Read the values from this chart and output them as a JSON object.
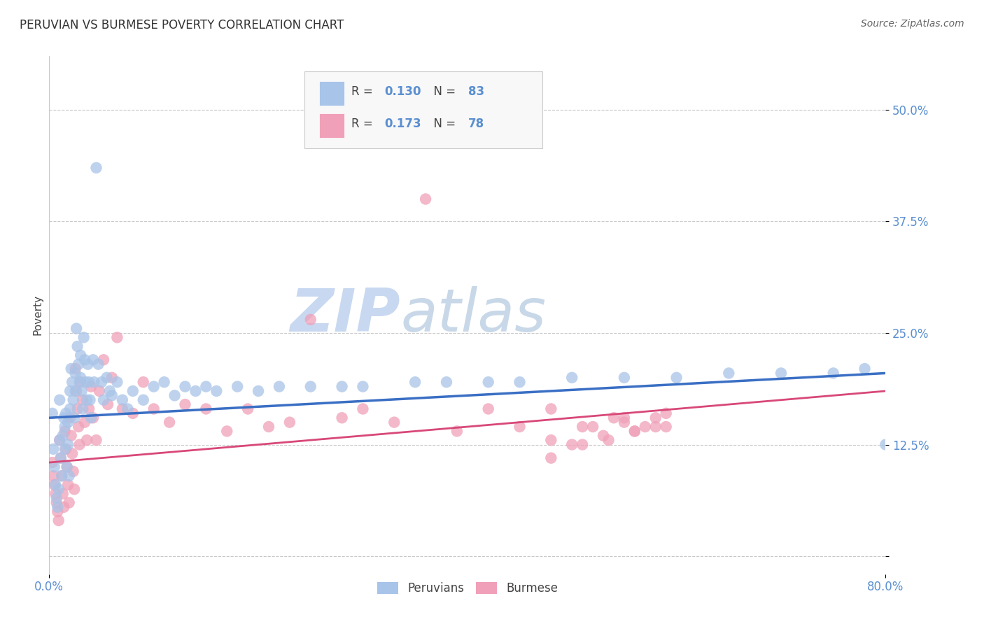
{
  "title": "PERUVIAN VS BURMESE POVERTY CORRELATION CHART",
  "source": "Source: ZipAtlas.com",
  "ylabel": "Poverty",
  "xlim": [
    0.0,
    0.8
  ],
  "ylim": [
    -0.02,
    0.56
  ],
  "yticks": [
    0.0,
    0.125,
    0.25,
    0.375,
    0.5
  ],
  "ytick_labels": [
    "",
    "12.5%",
    "25.0%",
    "37.5%",
    "50.0%"
  ],
  "xtick_vals": [
    0.0,
    0.8
  ],
  "xtick_labels": [
    "0.0%",
    "80.0%"
  ],
  "peruvian_color": "#a8c4e8",
  "burmese_color": "#f0a0b8",
  "peruvian_line_color": "#3a6fc4",
  "burmese_line_color": "#d84878",
  "tick_label_color": "#5a8fd0",
  "R_peruvian": 0.13,
  "N_peruvian": 83,
  "R_burmese": 0.173,
  "N_burmese": 78,
  "grid_color": "#c8c8c8",
  "background_color": "#ffffff",
  "watermark_zip_color": "#c8d8f0",
  "watermark_atlas_color": "#c8d8e8",
  "title_fontsize": 12,
  "axis_tick_fontsize": 12,
  "source_fontsize": 10,
  "peruvian_scatter_x": [
    0.003,
    0.004,
    0.005,
    0.006,
    0.007,
    0.008,
    0.009,
    0.01,
    0.01,
    0.011,
    0.012,
    0.013,
    0.014,
    0.015,
    0.015,
    0.016,
    0.017,
    0.018,
    0.018,
    0.019,
    0.02,
    0.02,
    0.021,
    0.022,
    0.023,
    0.024,
    0.025,
    0.025,
    0.026,
    0.027,
    0.028,
    0.029,
    0.03,
    0.03,
    0.031,
    0.032,
    0.033,
    0.034,
    0.035,
    0.036,
    0.037,
    0.038,
    0.039,
    0.04,
    0.042,
    0.043,
    0.045,
    0.047,
    0.05,
    0.052,
    0.055,
    0.058,
    0.06,
    0.065,
    0.07,
    0.075,
    0.08,
    0.09,
    0.1,
    0.11,
    0.12,
    0.13,
    0.14,
    0.15,
    0.16,
    0.18,
    0.2,
    0.22,
    0.25,
    0.28,
    0.3,
    0.35,
    0.38,
    0.42,
    0.45,
    0.5,
    0.55,
    0.6,
    0.65,
    0.7,
    0.75,
    0.78,
    0.8
  ],
  "peruvian_scatter_y": [
    0.16,
    0.12,
    0.1,
    0.08,
    0.065,
    0.055,
    0.075,
    0.175,
    0.13,
    0.11,
    0.09,
    0.135,
    0.155,
    0.145,
    0.12,
    0.16,
    0.1,
    0.15,
    0.125,
    0.09,
    0.185,
    0.165,
    0.21,
    0.195,
    0.175,
    0.155,
    0.205,
    0.185,
    0.255,
    0.235,
    0.215,
    0.195,
    0.225,
    0.2,
    0.185,
    0.165,
    0.245,
    0.22,
    0.195,
    0.175,
    0.215,
    0.195,
    0.175,
    0.155,
    0.22,
    0.195,
    0.435,
    0.215,
    0.195,
    0.175,
    0.2,
    0.185,
    0.18,
    0.195,
    0.175,
    0.165,
    0.185,
    0.175,
    0.19,
    0.195,
    0.18,
    0.19,
    0.185,
    0.19,
    0.185,
    0.19,
    0.185,
    0.19,
    0.19,
    0.19,
    0.19,
    0.195,
    0.195,
    0.195,
    0.195,
    0.2,
    0.2,
    0.2,
    0.205,
    0.205,
    0.205,
    0.21,
    0.125
  ],
  "burmese_scatter_x": [
    0.003,
    0.004,
    0.005,
    0.006,
    0.007,
    0.008,
    0.009,
    0.01,
    0.011,
    0.012,
    0.013,
    0.014,
    0.015,
    0.016,
    0.017,
    0.018,
    0.019,
    0.02,
    0.021,
    0.022,
    0.023,
    0.024,
    0.025,
    0.026,
    0.027,
    0.028,
    0.029,
    0.03,
    0.032,
    0.034,
    0.036,
    0.038,
    0.04,
    0.042,
    0.045,
    0.048,
    0.052,
    0.056,
    0.06,
    0.065,
    0.07,
    0.08,
    0.09,
    0.1,
    0.115,
    0.13,
    0.15,
    0.17,
    0.19,
    0.21,
    0.23,
    0.25,
    0.28,
    0.3,
    0.33,
    0.36,
    0.39,
    0.42,
    0.45,
    0.5,
    0.54,
    0.58,
    0.48,
    0.52,
    0.55,
    0.48,
    0.51,
    0.53,
    0.56,
    0.59,
    0.48,
    0.51,
    0.535,
    0.55,
    0.56,
    0.57,
    0.58,
    0.59
  ],
  "burmese_scatter_y": [
    0.105,
    0.09,
    0.08,
    0.07,
    0.06,
    0.05,
    0.04,
    0.13,
    0.11,
    0.09,
    0.07,
    0.055,
    0.14,
    0.12,
    0.1,
    0.08,
    0.06,
    0.155,
    0.135,
    0.115,
    0.095,
    0.075,
    0.21,
    0.185,
    0.165,
    0.145,
    0.125,
    0.195,
    0.175,
    0.15,
    0.13,
    0.165,
    0.19,
    0.155,
    0.13,
    0.185,
    0.22,
    0.17,
    0.2,
    0.245,
    0.165,
    0.16,
    0.195,
    0.165,
    0.15,
    0.17,
    0.165,
    0.14,
    0.165,
    0.145,
    0.15,
    0.265,
    0.155,
    0.165,
    0.15,
    0.4,
    0.14,
    0.165,
    0.145,
    0.125,
    0.155,
    0.145,
    0.165,
    0.145,
    0.155,
    0.13,
    0.145,
    0.135,
    0.14,
    0.145,
    0.11,
    0.125,
    0.13,
    0.15,
    0.14,
    0.145,
    0.155,
    0.16
  ],
  "peruvian_regline": [
    0.155,
    0.205
  ],
  "burmese_regline": [
    0.105,
    0.185
  ]
}
